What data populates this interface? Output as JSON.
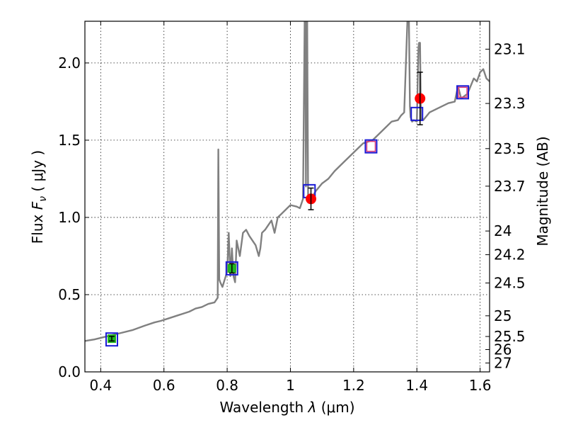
{
  "chart_data": {
    "type": "line",
    "xlabel_prefix": "Wavelength",
    "xlabel_symbol": "λ",
    "xlabel_unit": "(μm)",
    "ylabel_prefix": "Flux",
    "ylabel_symbol": "F",
    "ylabel_subscript": "ν",
    "ylabel_unit": "( μJy )",
    "y2label": "Magnitude (AB)",
    "xlim": [
      0.35,
      1.63
    ],
    "ylim": [
      0.0,
      2.27
    ],
    "grid": true,
    "x_ticks": [
      0.4,
      0.6,
      0.8,
      1.0,
      1.2,
      1.4,
      1.6
    ],
    "x_tick_labels": [
      "0.4",
      "0.6",
      "0.8",
      "1",
      "1.2",
      "1.4",
      "1.6"
    ],
    "y_ticks": [
      0.0,
      0.5,
      1.0,
      1.5,
      2.0
    ],
    "y_tick_labels": [
      "0.0",
      "0.5",
      "1.0",
      "1.5",
      "2.0"
    ],
    "mag_ticks": [
      23.1,
      23.3,
      23.5,
      23.7,
      24,
      24.2,
      24.5,
      25,
      25.5,
      26,
      27
    ],
    "mag_tick_labels": [
      "23.1",
      "23.3",
      "23.5",
      "23.7",
      "24",
      "24.2",
      "24.5",
      "25",
      "25.5",
      "26",
      "27"
    ],
    "model_spectrum": {
      "x": [
        0.35,
        0.38,
        0.42,
        0.46,
        0.5,
        0.54,
        0.57,
        0.59,
        0.62,
        0.65,
        0.68,
        0.7,
        0.72,
        0.74,
        0.76,
        0.77,
        0.772,
        0.775,
        0.778,
        0.785,
        0.8,
        0.805,
        0.81,
        0.815,
        0.82,
        0.825,
        0.83,
        0.84,
        0.85,
        0.86,
        0.87,
        0.89,
        0.9,
        0.905,
        0.91,
        0.92,
        0.93,
        0.94,
        0.95,
        0.96,
        0.97,
        0.99,
        1.0,
        1.02,
        1.03,
        1.04,
        1.045,
        1.047,
        1.049,
        1.051,
        1.053,
        1.056,
        1.06,
        1.08,
        1.1,
        1.12,
        1.14,
        1.17,
        1.2,
        1.23,
        1.26,
        1.3,
        1.32,
        1.34,
        1.35,
        1.36,
        1.37,
        1.375,
        1.378,
        1.38,
        1.385,
        1.39,
        1.4,
        1.405,
        1.407,
        1.41,
        1.413,
        1.416,
        1.42,
        1.44,
        1.46,
        1.5,
        1.52,
        1.53,
        1.54,
        1.56,
        1.58,
        1.59,
        1.6,
        1.61,
        1.62,
        1.63
      ],
      "y": [
        0.2,
        0.21,
        0.23,
        0.25,
        0.27,
        0.3,
        0.32,
        0.33,
        0.35,
        0.37,
        0.39,
        0.41,
        0.42,
        0.44,
        0.45,
        0.48,
        1.44,
        0.6,
        0.58,
        0.55,
        0.65,
        0.9,
        0.62,
        0.8,
        0.62,
        0.58,
        0.85,
        0.75,
        0.9,
        0.92,
        0.88,
        0.82,
        0.75,
        0.8,
        0.9,
        0.92,
        0.95,
        0.98,
        0.9,
        1.0,
        1.02,
        1.06,
        1.08,
        1.07,
        1.06,
        1.12,
        2.27,
        2.27,
        1.2,
        2.27,
        2.27,
        1.12,
        1.1,
        1.17,
        1.22,
        1.25,
        1.3,
        1.36,
        1.42,
        1.48,
        1.5,
        1.58,
        1.62,
        1.63,
        1.66,
        1.68,
        2.27,
        2.27,
        1.72,
        1.65,
        1.62,
        1.63,
        1.62,
        2.1,
        2.13,
        2.13,
        1.63,
        1.64,
        1.63,
        1.68,
        1.7,
        1.74,
        1.75,
        1.85,
        1.77,
        1.8,
        1.9,
        1.88,
        1.94,
        1.96,
        1.9,
        1.88
      ]
    },
    "boxes_blue": [
      {
        "x": 0.435,
        "y": 0.21
      },
      {
        "x": 0.815,
        "y": 0.67
      },
      {
        "x": 1.06,
        "y": 1.17
      },
      {
        "x": 1.255,
        "y": 1.46
      },
      {
        "x": 1.4,
        "y": 1.67
      },
      {
        "x": 1.545,
        "y": 1.81
      }
    ],
    "boxes_pink": [
      {
        "x": 1.255,
        "y": 1.46
      },
      {
        "x": 1.545,
        "y": 1.81
      }
    ],
    "points_green": [
      {
        "x": 0.435,
        "y": 0.215,
        "yerr": 0.015
      },
      {
        "x": 0.815,
        "y": 0.67,
        "yerr": 0.03
      }
    ],
    "points_red": [
      {
        "x": 1.065,
        "y": 1.12,
        "yerr": 0.07
      },
      {
        "x": 1.41,
        "y": 1.77,
        "yerr": 0.17
      }
    ],
    "colors": {
      "model": "#808080",
      "box_blue": "#1a1ad6",
      "box_pink": "#e0407a",
      "point_green": "#1fb51f",
      "point_red": "#ff0000",
      "errorbar": "#000000"
    }
  }
}
